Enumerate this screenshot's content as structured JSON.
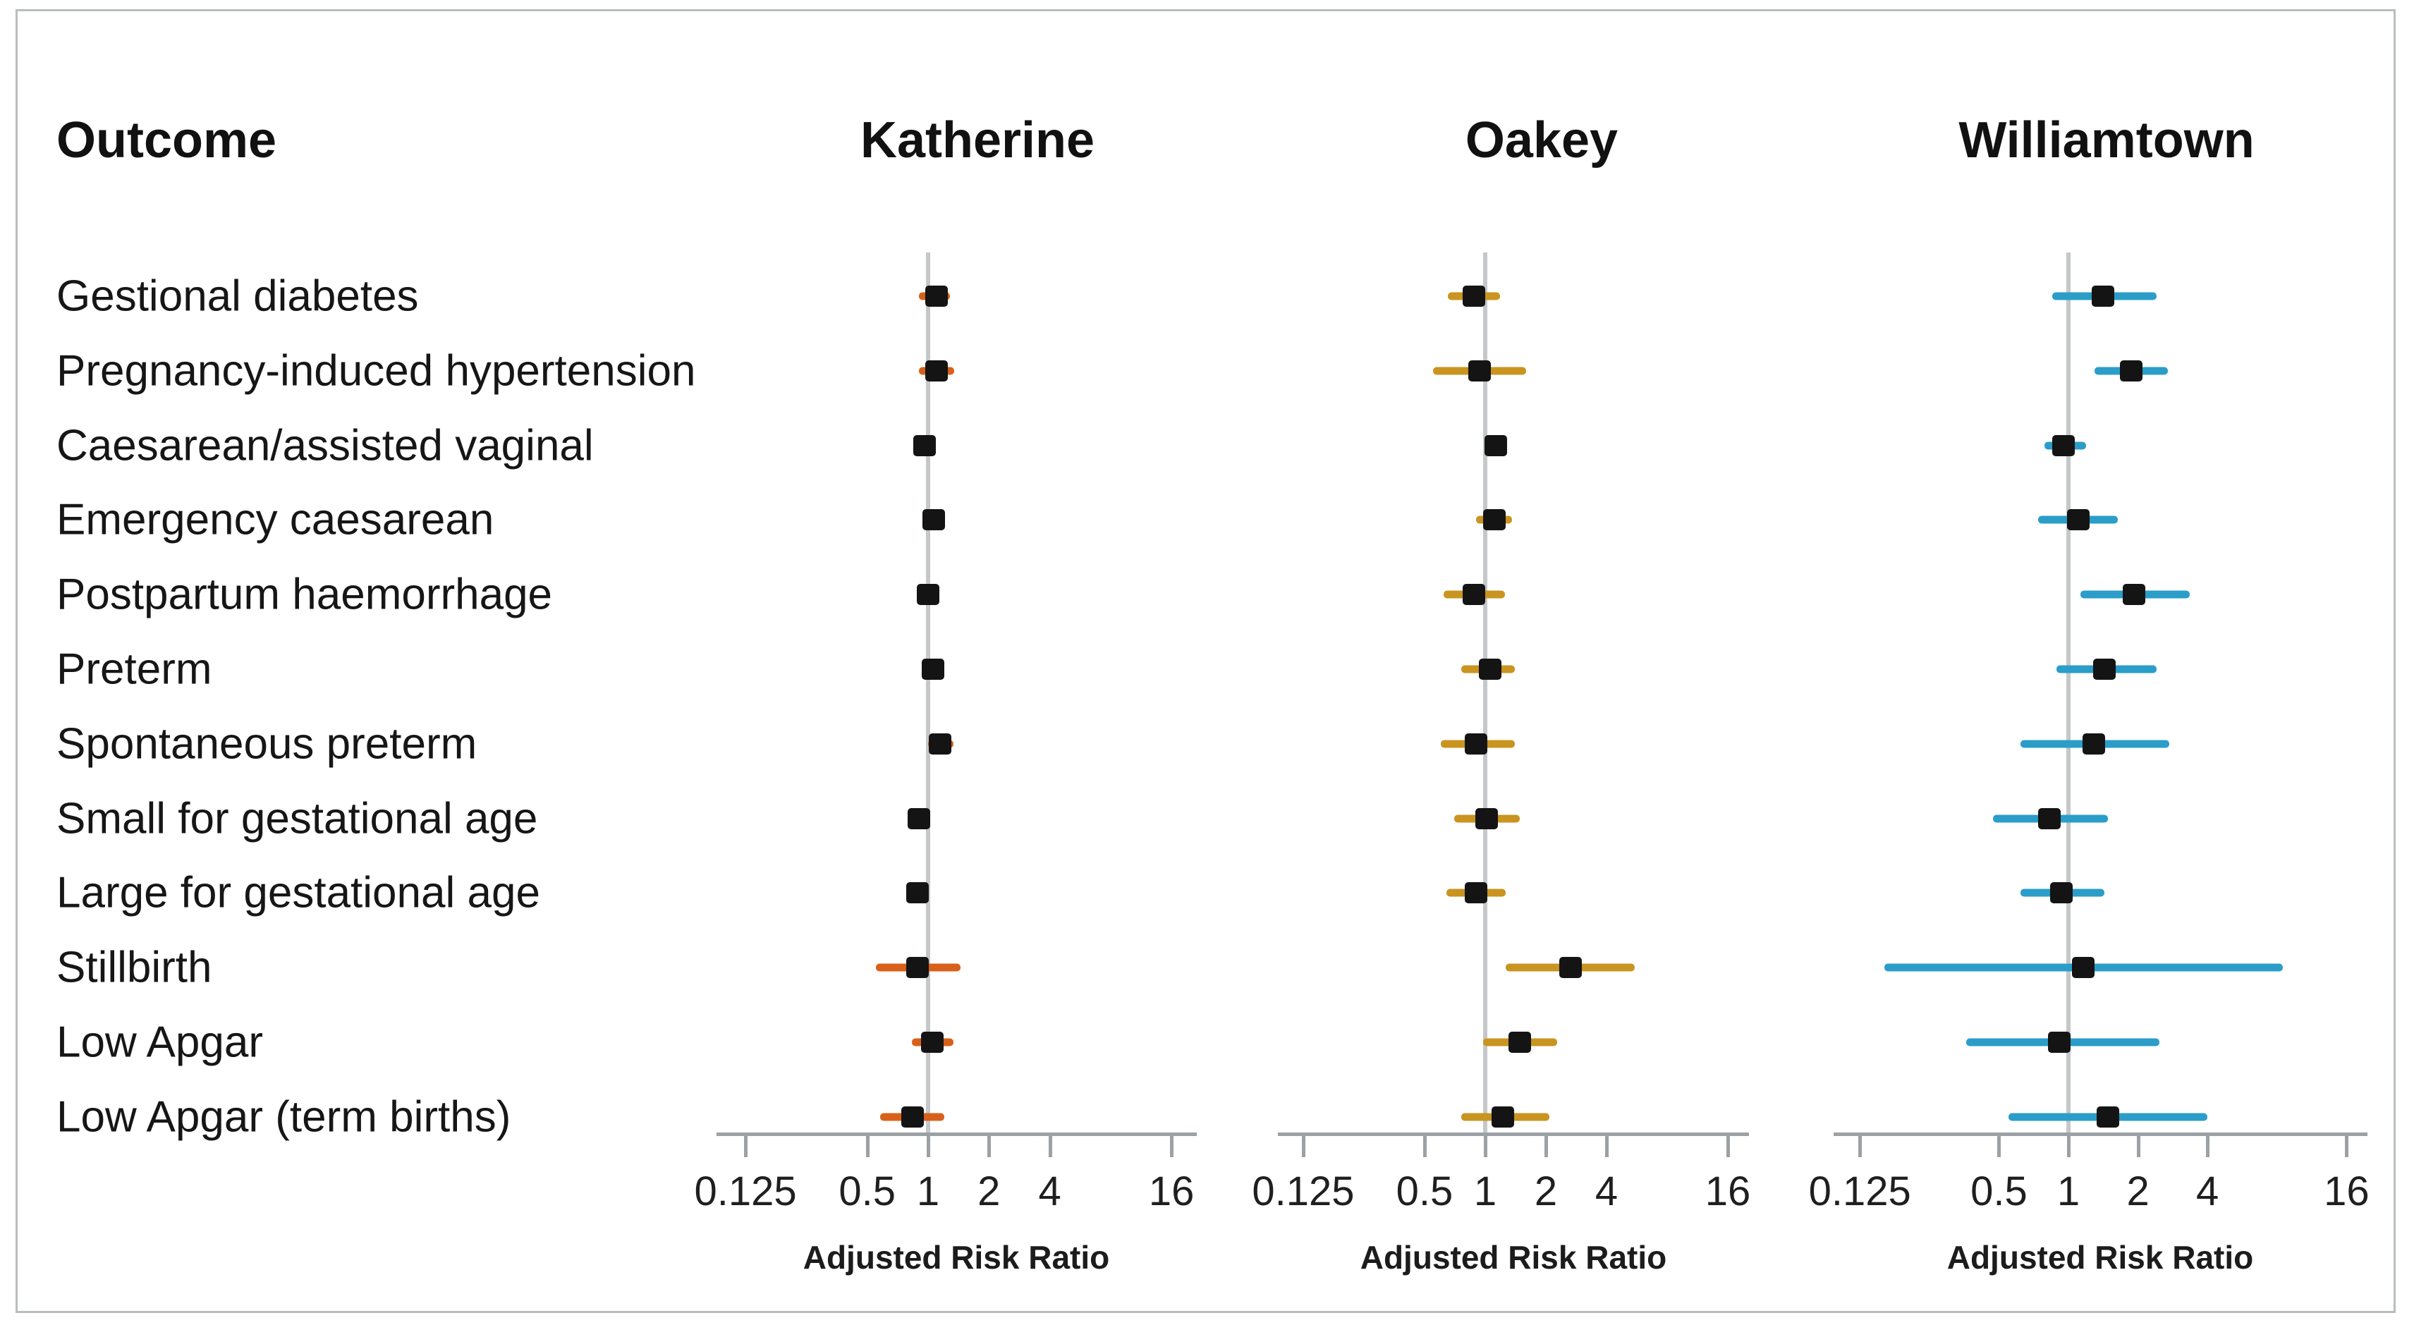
{
  "chart_data": {
    "type": "forest",
    "header": {
      "outcome_col": "Outcome"
    },
    "outcomes": [
      "Gestional diabetes",
      "Pregnancy-induced hypertension",
      "Caesarean/assisted vaginal",
      "Emergency caesarean",
      "Postpartum haemorrhage",
      "Preterm",
      "Spontaneous preterm",
      "Small for gestational age",
      "Large for gestational age",
      "Stillbirth",
      "Low Apgar",
      "Low Apgar (term births)"
    ],
    "x_axis": {
      "scale": "log2",
      "ticks": [
        0.125,
        0.5,
        1,
        2,
        4,
        16
      ],
      "tick_labels": [
        "0.125",
        "0.5",
        "1",
        "2",
        "4",
        "16"
      ],
      "label": "Adjusted Risk Ratio",
      "reference_line": 1,
      "range": [
        0.09,
        22
      ]
    },
    "marker_color": "#141414",
    "reference_line_color": "#c5c8c9",
    "axis_color": "#9ba1a4",
    "panels": [
      {
        "name": "Katherine",
        "color": "#d9601a",
        "estimates": [
          {
            "rr": 1.1,
            "lo": 0.9,
            "hi": 1.28
          },
          {
            "rr": 1.1,
            "lo": 0.9,
            "hi": 1.35
          },
          {
            "rr": 0.96,
            "lo": 0.9,
            "hi": 1.02
          },
          {
            "rr": 1.07,
            "lo": 0.95,
            "hi": 1.2
          },
          {
            "rr": 1.0,
            "lo": 0.9,
            "hi": 1.12
          },
          {
            "rr": 1.06,
            "lo": 0.95,
            "hi": 1.2
          },
          {
            "rr": 1.15,
            "lo": 1.0,
            "hi": 1.33
          },
          {
            "rr": 0.9,
            "lo": 0.84,
            "hi": 0.97
          },
          {
            "rr": 0.89,
            "lo": 0.8,
            "hi": 1.0
          },
          {
            "rr": 0.89,
            "lo": 0.55,
            "hi": 1.45
          },
          {
            "rr": 1.05,
            "lo": 0.83,
            "hi": 1.33
          },
          {
            "rr": 0.84,
            "lo": 0.58,
            "hi": 1.2
          }
        ]
      },
      {
        "name": "Oakey",
        "color": "#c99420",
        "estimates": [
          {
            "rr": 0.88,
            "lo": 0.65,
            "hi": 1.18
          },
          {
            "rr": 0.94,
            "lo": 0.55,
            "hi": 1.6
          },
          {
            "rr": 1.13,
            "lo": 1.05,
            "hi": 1.22
          },
          {
            "rr": 1.11,
            "lo": 0.9,
            "hi": 1.36
          },
          {
            "rr": 0.88,
            "lo": 0.62,
            "hi": 1.25
          },
          {
            "rr": 1.06,
            "lo": 0.76,
            "hi": 1.4
          },
          {
            "rr": 0.9,
            "lo": 0.6,
            "hi": 1.4
          },
          {
            "rr": 1.02,
            "lo": 0.7,
            "hi": 1.48
          },
          {
            "rr": 0.9,
            "lo": 0.64,
            "hi": 1.26
          },
          {
            "rr": 2.65,
            "lo": 1.26,
            "hi": 5.5
          },
          {
            "rr": 1.48,
            "lo": 0.98,
            "hi": 2.28
          },
          {
            "rr": 1.22,
            "lo": 0.76,
            "hi": 2.08
          }
        ]
      },
      {
        "name": "Williamtown",
        "color": "#2b9dc9",
        "estimates": [
          {
            "rr": 1.41,
            "lo": 0.85,
            "hi": 2.4
          },
          {
            "rr": 1.87,
            "lo": 1.3,
            "hi": 2.7
          },
          {
            "rr": 0.95,
            "lo": 0.79,
            "hi": 1.19
          },
          {
            "rr": 1.1,
            "lo": 0.74,
            "hi": 1.64
          },
          {
            "rr": 1.92,
            "lo": 1.13,
            "hi": 3.35
          },
          {
            "rr": 1.43,
            "lo": 0.89,
            "hi": 2.4
          },
          {
            "rr": 1.29,
            "lo": 0.62,
            "hi": 2.73
          },
          {
            "rr": 0.83,
            "lo": 0.47,
            "hi": 1.48
          },
          {
            "rr": 0.93,
            "lo": 0.62,
            "hi": 1.43
          },
          {
            "rr": 1.16,
            "lo": 0.16,
            "hi": 8.5
          },
          {
            "rr": 0.91,
            "lo": 0.36,
            "hi": 2.47
          },
          {
            "rr": 1.48,
            "lo": 0.55,
            "hi": 4.0
          }
        ]
      }
    ]
  }
}
